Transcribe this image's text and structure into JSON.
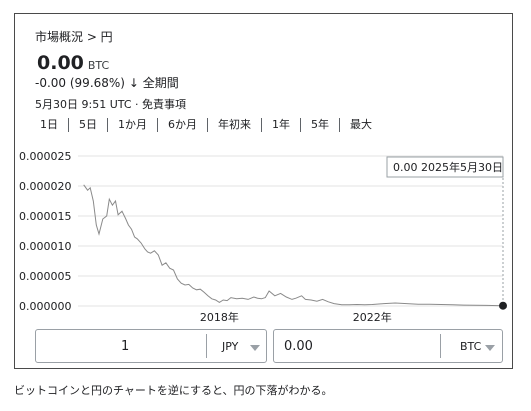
{
  "breadcrumb": "市場概況 > 円",
  "price": {
    "value": "0.00",
    "unit": "BTC"
  },
  "change": {
    "text": "-0.00 (99.68%)",
    "arrow": "↓",
    "period": "全期間"
  },
  "meta": "5月30日 9:51 UTC · 免責事項",
  "ranges": [
    "1日",
    "5日",
    "1か月",
    "6か月",
    "年初来",
    "1年",
    "5年",
    "最大"
  ],
  "tooltip": "0.00  2025年5月30日",
  "converter": {
    "left": {
      "value": "1",
      "currency": "JPY"
    },
    "right": {
      "value": "0.00",
      "currency": "BTC"
    }
  },
  "caption": "ビットコインと円のチャートを逆にすると、円の下落がわかる。",
  "colors": {
    "line": "#8a8a8a",
    "grid": "#e3e3e3",
    "marker": "#202124"
  },
  "chart_data": {
    "type": "line",
    "y_ticks": [
      "0.000025",
      "0.000020",
      "0.000015",
      "0.000010",
      "0.000005",
      "0.000000"
    ],
    "ylim": [
      0,
      2.5e-05
    ],
    "x_ticks": [
      {
        "label": "2018年",
        "x": 2018
      },
      {
        "label": "2022年",
        "x": 2022
      }
    ],
    "xlim": [
      2014.3,
      2025.42
    ],
    "series": [
      {
        "x": [
          2014.45,
          2014.55,
          2014.62,
          2014.7,
          2014.78,
          2014.85,
          2014.95,
          2015.05,
          2015.12,
          2015.2,
          2015.28,
          2015.35,
          2015.45,
          2015.55,
          2015.62,
          2015.7,
          2015.78,
          2015.85,
          2015.95,
          2016.05,
          2016.12,
          2016.2,
          2016.3,
          2016.4,
          2016.5,
          2016.6,
          2016.7,
          2016.8,
          2016.9,
          2017.0,
          2017.1,
          2017.2,
          2017.3,
          2017.4,
          2017.5,
          2017.6,
          2017.7,
          2017.8,
          2017.9,
          2018.0,
          2018.1,
          2018.2,
          2018.3,
          2018.45,
          2018.6,
          2018.75,
          2018.9,
          2019.0,
          2019.1,
          2019.2,
          2019.3,
          2019.45,
          2019.6,
          2019.75,
          2019.9,
          2020.0,
          2020.15,
          2020.25,
          2020.4,
          2020.55,
          2020.7,
          2020.85,
          2021.0,
          2021.2,
          2021.4,
          2021.6,
          2021.8,
          2022.0,
          2022.3,
          2022.6,
          2022.9,
          2023.2,
          2023.5,
          2023.8,
          2024.1,
          2024.4,
          2024.7,
          2025.0,
          2025.42
        ],
        "y": [
          2.02e-05,
          1.93e-05,
          1.97e-05,
          1.75e-05,
          1.35e-05,
          1.2e-05,
          1.45e-05,
          1.5e-05,
          1.78e-05,
          1.68e-05,
          1.75e-05,
          1.52e-05,
          1.58e-05,
          1.45e-05,
          1.35e-05,
          1.28e-05,
          1.15e-05,
          1.12e-05,
          1.05e-05,
          9.5e-06,
          9e-06,
          8.8e-06,
          9.2e-06,
          8.5e-06,
          6.8e-06,
          7.2e-06,
          6.3e-06,
          6e-06,
          4.5e-06,
          3.8e-06,
          3.5e-06,
          3.6e-06,
          3e-06,
          2.7e-06,
          2.8e-06,
          2.3e-06,
          1.7e-06,
          1.2e-06,
          1e-06,
          6e-07,
          1e-06,
          9e-07,
          1.4e-06,
          1.2e-06,
          1.3e-06,
          1.1e-06,
          1.5e-06,
          1.3e-06,
          1.2e-06,
          1.4e-06,
          2.5e-06,
          1.7e-06,
          2.1e-06,
          1.5e-06,
          1.1e-06,
          1.3e-06,
          1.7e-06,
          1.1e-06,
          1e-06,
          8e-07,
          1.1e-06,
          7e-07,
          4e-07,
          2e-07,
          2e-07,
          2.5e-07,
          2e-07,
          2.5e-07,
          4e-07,
          5e-07,
          4e-07,
          3e-07,
          3e-07,
          2.5e-07,
          2e-07,
          1.5e-07,
          1.2e-07,
          1e-07,
          5e-08
        ]
      }
    ]
  }
}
